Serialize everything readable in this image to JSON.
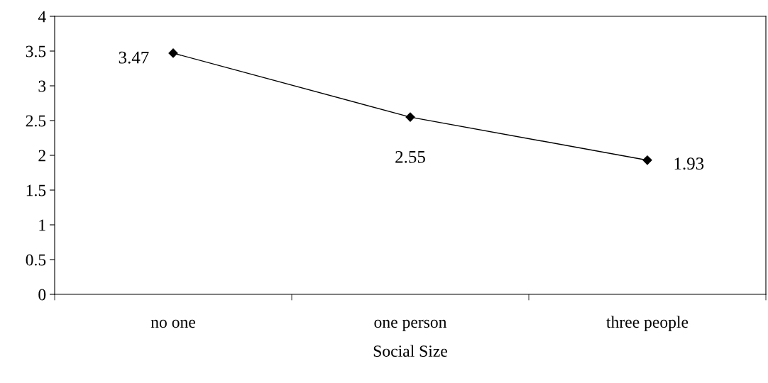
{
  "chart_data": {
    "type": "line",
    "xlabel": "Social Size",
    "categories": [
      "no one",
      "one person",
      "three people"
    ],
    "series": [
      {
        "color": "#000000",
        "values": [
          3.47,
          2.55,
          1.93
        ]
      }
    ],
    "ylim": [
      0,
      4
    ],
    "yticks": [
      0,
      0.5,
      1,
      1.5,
      2,
      2.5,
      3,
      3.5,
      4
    ],
    "marker": "diamond",
    "line_style": "solid",
    "data_labels": true,
    "grid": false,
    "legend": false
  }
}
